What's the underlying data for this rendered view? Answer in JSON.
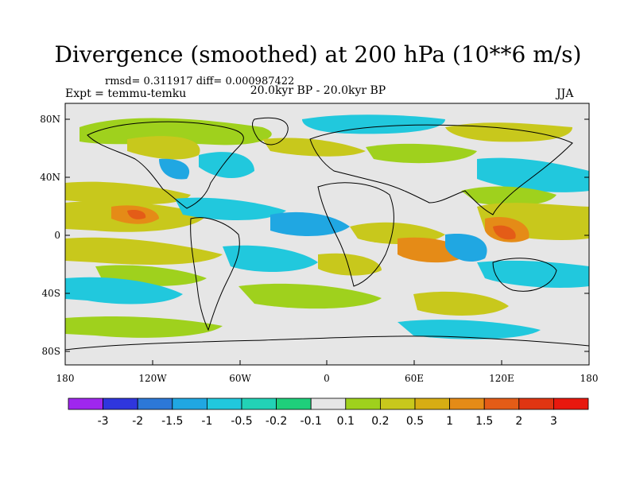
{
  "header": {
    "title": "Divergence (smoothed) at 200 hPa (10**6 m/s)",
    "stats": "rmsd= 0.311917  diff= 0.000987422",
    "experiment": "Expt = temmu-temku",
    "period": "20.0kyr BP - 20.0kyr BP",
    "season": "JJA"
  },
  "axes": {
    "x_ticks": [
      "180",
      "120W",
      "60W",
      "0",
      "60E",
      "120E",
      "180"
    ],
    "y_ticks": [
      "80N",
      "40N",
      "0",
      "40S",
      "80S"
    ]
  },
  "colorbar": {
    "labels": [
      "-3",
      "-2",
      "-1.5",
      "-1",
      "-0.5",
      "-0.2",
      "-0.1",
      "0.1",
      "0.2",
      "0.5",
      "1",
      "1.5",
      "2",
      "3"
    ],
    "colors": [
      "#9f27ee",
      "#2f36dd",
      "#2c78d8",
      "#20a7e2",
      "#21c8dd",
      "#22d2b6",
      "#1fcf7b",
      "#e6e6e6",
      "#9fd11d",
      "#c8c81c",
      "#d7ad13",
      "#e58b17",
      "#e45c17",
      "#e03512",
      "#e8180e"
    ]
  },
  "map_layers": {
    "land_label": "continent-outlines",
    "palette": {
      "neutral": "#e6e6e6",
      "yellow": "#c8c81c",
      "green": "#9fd11d",
      "orange": "#e58b17",
      "red": "#e45c17",
      "cyan": "#21c8dd",
      "blue": "#2c78d8",
      "teal": "#22d2b6"
    }
  }
}
